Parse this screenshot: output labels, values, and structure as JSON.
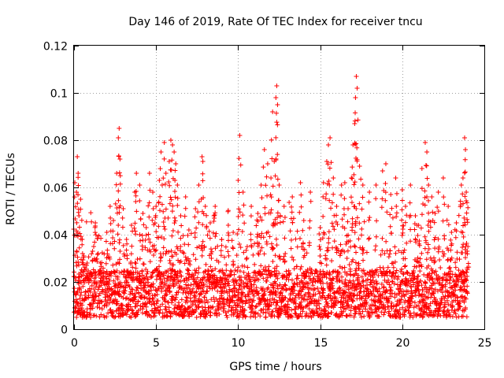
{
  "chart_data": {
    "type": "scatter",
    "title": "Day 146 of 2019, Rate Of TEC Index for receiver tncu",
    "xlabel": "GPS time / hours",
    "ylabel": "ROTI / TECUs",
    "xlim": [
      0,
      25
    ],
    "ylim": [
      0,
      0.12
    ],
    "x_ticks": [
      "0",
      "5",
      "10",
      "15",
      "20",
      "25"
    ],
    "y_ticks": [
      "0",
      "0.02",
      "0.04",
      "0.06",
      "0.08",
      "0.1",
      "0.12"
    ],
    "grid": true,
    "marker": "+",
    "series": [
      {
        "name": "ROTI",
        "color": "#ff0000",
        "points": [
          [
            0.05,
            0.062
          ],
          [
            0.15,
            0.058
          ],
          [
            0.2,
            0.073
          ],
          [
            0.25,
            0.066
          ],
          [
            0.3,
            0.048
          ],
          [
            0.4,
            0.055
          ],
          [
            0.5,
            0.038
          ],
          [
            0.6,
            0.031
          ],
          [
            0.8,
            0.028
          ],
          [
            1.0,
            0.024
          ],
          [
            1.2,
            0.035
          ],
          [
            1.3,
            0.045
          ],
          [
            1.6,
            0.028
          ],
          [
            2.0,
            0.041
          ],
          [
            2.2,
            0.052
          ],
          [
            2.4,
            0.046
          ],
          [
            2.6,
            0.066
          ],
          [
            2.7,
            0.081
          ],
          [
            2.75,
            0.085
          ],
          [
            2.8,
            0.072
          ],
          [
            3.0,
            0.051
          ],
          [
            3.2,
            0.038
          ],
          [
            3.5,
            0.044
          ],
          [
            3.7,
            0.058
          ],
          [
            3.8,
            0.066
          ],
          [
            4.0,
            0.061
          ],
          [
            4.2,
            0.049
          ],
          [
            4.4,
            0.043
          ],
          [
            4.6,
            0.066
          ],
          [
            4.8,
            0.058
          ],
          [
            5.0,
            0.052
          ],
          [
            5.2,
            0.063
          ],
          [
            5.3,
            0.075
          ],
          [
            5.5,
            0.079
          ],
          [
            5.6,
            0.066
          ],
          [
            5.8,
            0.071
          ],
          [
            5.9,
            0.08
          ],
          [
            6.0,
            0.078
          ],
          [
            6.1,
            0.075
          ],
          [
            6.2,
            0.07
          ],
          [
            6.3,
            0.061
          ],
          [
            6.5,
            0.048
          ],
          [
            6.8,
            0.056
          ],
          [
            7.0,
            0.042
          ],
          [
            7.4,
            0.051
          ],
          [
            7.6,
            0.061
          ],
          [
            7.8,
            0.073
          ],
          [
            7.85,
            0.071
          ],
          [
            8.0,
            0.052
          ],
          [
            8.3,
            0.045
          ],
          [
            8.6,
            0.052
          ],
          [
            9.0,
            0.038
          ],
          [
            9.4,
            0.044
          ],
          [
            9.7,
            0.041
          ],
          [
            10.0,
            0.063
          ],
          [
            10.1,
            0.082
          ],
          [
            10.3,
            0.058
          ],
          [
            10.8,
            0.052
          ],
          [
            11.2,
            0.049
          ],
          [
            11.4,
            0.061
          ],
          [
            11.6,
            0.076
          ],
          [
            11.8,
            0.07
          ],
          [
            12.0,
            0.064
          ],
          [
            12.1,
            0.092
          ],
          [
            12.2,
            0.071
          ],
          [
            12.3,
            0.098
          ],
          [
            12.35,
            0.103
          ],
          [
            12.4,
            0.095
          ],
          [
            12.5,
            0.061
          ],
          [
            12.8,
            0.052
          ],
          [
            13.3,
            0.056
          ],
          [
            13.8,
            0.062
          ],
          [
            14.0,
            0.046
          ],
          [
            14.4,
            0.058
          ],
          [
            15.0,
            0.043
          ],
          [
            15.2,
            0.062
          ],
          [
            15.4,
            0.071
          ],
          [
            15.5,
            0.078
          ],
          [
            15.6,
            0.081
          ],
          [
            15.8,
            0.064
          ],
          [
            16.0,
            0.052
          ],
          [
            16.3,
            0.061
          ],
          [
            16.5,
            0.062
          ],
          [
            16.7,
            0.051
          ],
          [
            16.9,
            0.064
          ],
          [
            17.0,
            0.078
          ],
          [
            17.1,
            0.087
          ],
          [
            17.15,
            0.098
          ],
          [
            17.2,
            0.107
          ],
          [
            17.25,
            0.102
          ],
          [
            17.4,
            0.069
          ],
          [
            17.6,
            0.061
          ],
          [
            18.0,
            0.058
          ],
          [
            18.4,
            0.061
          ],
          [
            18.8,
            0.067
          ],
          [
            19.0,
            0.07
          ],
          [
            19.3,
            0.057
          ],
          [
            19.6,
            0.064
          ],
          [
            20.0,
            0.059
          ],
          [
            20.2,
            0.052
          ],
          [
            20.5,
            0.061
          ],
          [
            20.8,
            0.048
          ],
          [
            21.0,
            0.044
          ],
          [
            21.2,
            0.068
          ],
          [
            21.4,
            0.079
          ],
          [
            21.5,
            0.075
          ],
          [
            21.6,
            0.061
          ],
          [
            21.8,
            0.056
          ],
          [
            22.0,
            0.049
          ],
          [
            22.2,
            0.058
          ],
          [
            22.5,
            0.064
          ],
          [
            22.8,
            0.052
          ],
          [
            23.0,
            0.041
          ],
          [
            23.3,
            0.045
          ],
          [
            23.6,
            0.061
          ],
          [
            23.7,
            0.064
          ],
          [
            23.8,
            0.081
          ],
          [
            23.85,
            0.076
          ],
          [
            23.9,
            0.058
          ],
          [
            24.0,
            0.035
          ]
        ],
        "background_band": {
          "x_range": [
            0,
            24
          ],
          "dense_range": [
            0.005,
            0.025
          ],
          "spread_max": 0.05,
          "description": "dense cloud of + markers across all hours"
        }
      }
    ]
  }
}
